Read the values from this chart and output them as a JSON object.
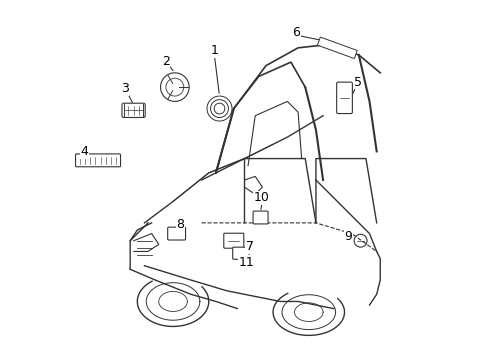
{
  "title": "",
  "background_color": "#ffffff",
  "figure_width": 4.89,
  "figure_height": 3.6,
  "dpi": 100,
  "line_color": "#333333",
  "text_color": "#000000",
  "font_size": 9,
  "car_linewidth": 1.0
}
